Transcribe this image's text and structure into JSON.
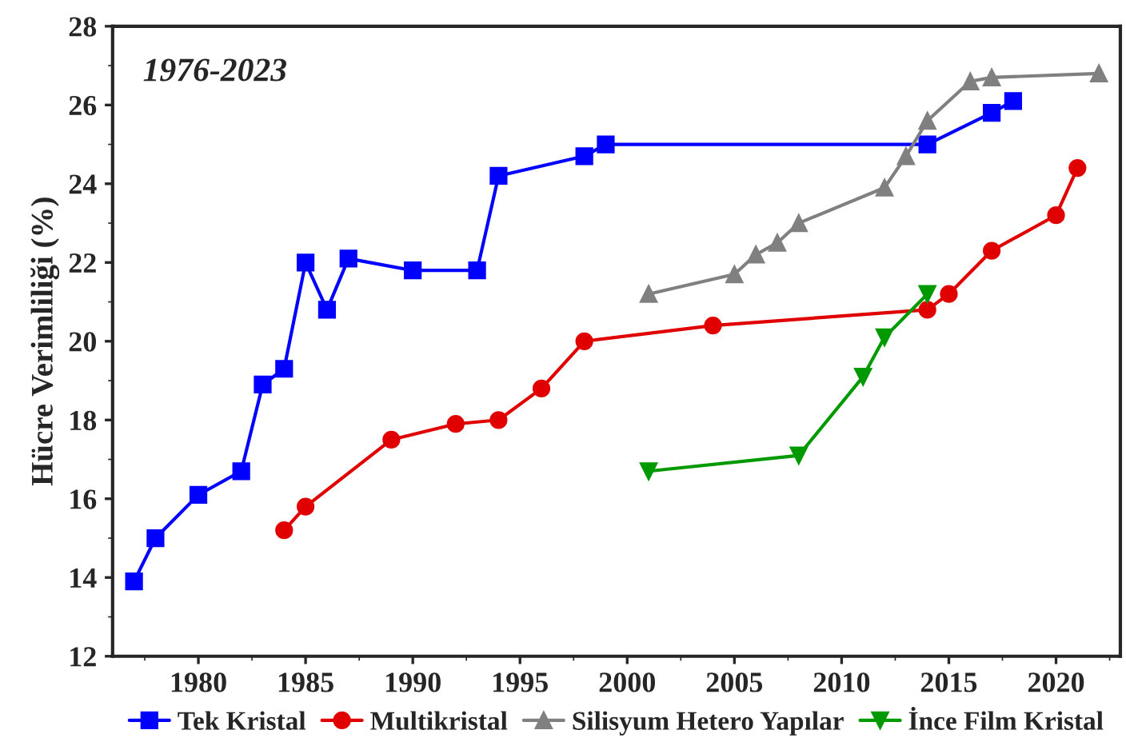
{
  "chart_data": {
    "type": "line",
    "ylabel": "Hücre Verimliliği (%)",
    "annotations": [
      "1976-2023"
    ],
    "xlim": [
      1976,
      2023
    ],
    "xticks": [
      1980,
      1985,
      1990,
      1995,
      2000,
      2005,
      2010,
      2015,
      2020
    ],
    "ylim": [
      12,
      28
    ],
    "yticks": [
      12,
      14,
      16,
      18,
      20,
      22,
      24,
      26,
      28
    ],
    "grid": false,
    "legend": "bottom",
    "series": [
      {
        "name": "Tek Kristal",
        "color": "#0000ff",
        "marker": "square",
        "x": [
          1977,
          1978,
          1980,
          1982,
          1983,
          1984,
          1985,
          1986,
          1987,
          1990,
          1993,
          1994,
          1998,
          1999,
          2014,
          2017,
          2018
        ],
        "values": [
          13.9,
          15.0,
          16.1,
          16.7,
          18.9,
          19.3,
          22.0,
          20.8,
          22.1,
          21.8,
          21.8,
          24.2,
          24.7,
          25.0,
          25.0,
          25.8,
          26.1
        ]
      },
      {
        "name": "Multikristal",
        "color": "#e00000",
        "marker": "circle",
        "x": [
          1984,
          1985,
          1989,
          1992,
          1994,
          1996,
          1998,
          2004,
          2014,
          2015,
          2017,
          2020,
          2021
        ],
        "values": [
          15.2,
          15.8,
          17.5,
          17.9,
          18.0,
          18.8,
          20.0,
          20.4,
          20.8,
          21.2,
          22.3,
          23.2,
          24.4
        ]
      },
      {
        "name": "Silisyum Hetero Yapılar",
        "color": "#808080",
        "marker": "triangle",
        "x": [
          2001,
          2005,
          2006,
          2007,
          2008,
          2012,
          2013,
          2014,
          2016,
          2017,
          2022
        ],
        "values": [
          21.2,
          21.7,
          22.2,
          22.5,
          23.0,
          23.9,
          24.7,
          25.6,
          26.6,
          26.7,
          26.8
        ]
      },
      {
        "name": "İnce Film Kristal",
        "color": "#009900",
        "marker": "triangle_down",
        "x": [
          2001,
          2008,
          2011,
          2012,
          2014
        ],
        "values": [
          16.7,
          17.1,
          19.1,
          20.1,
          21.2
        ]
      }
    ]
  }
}
